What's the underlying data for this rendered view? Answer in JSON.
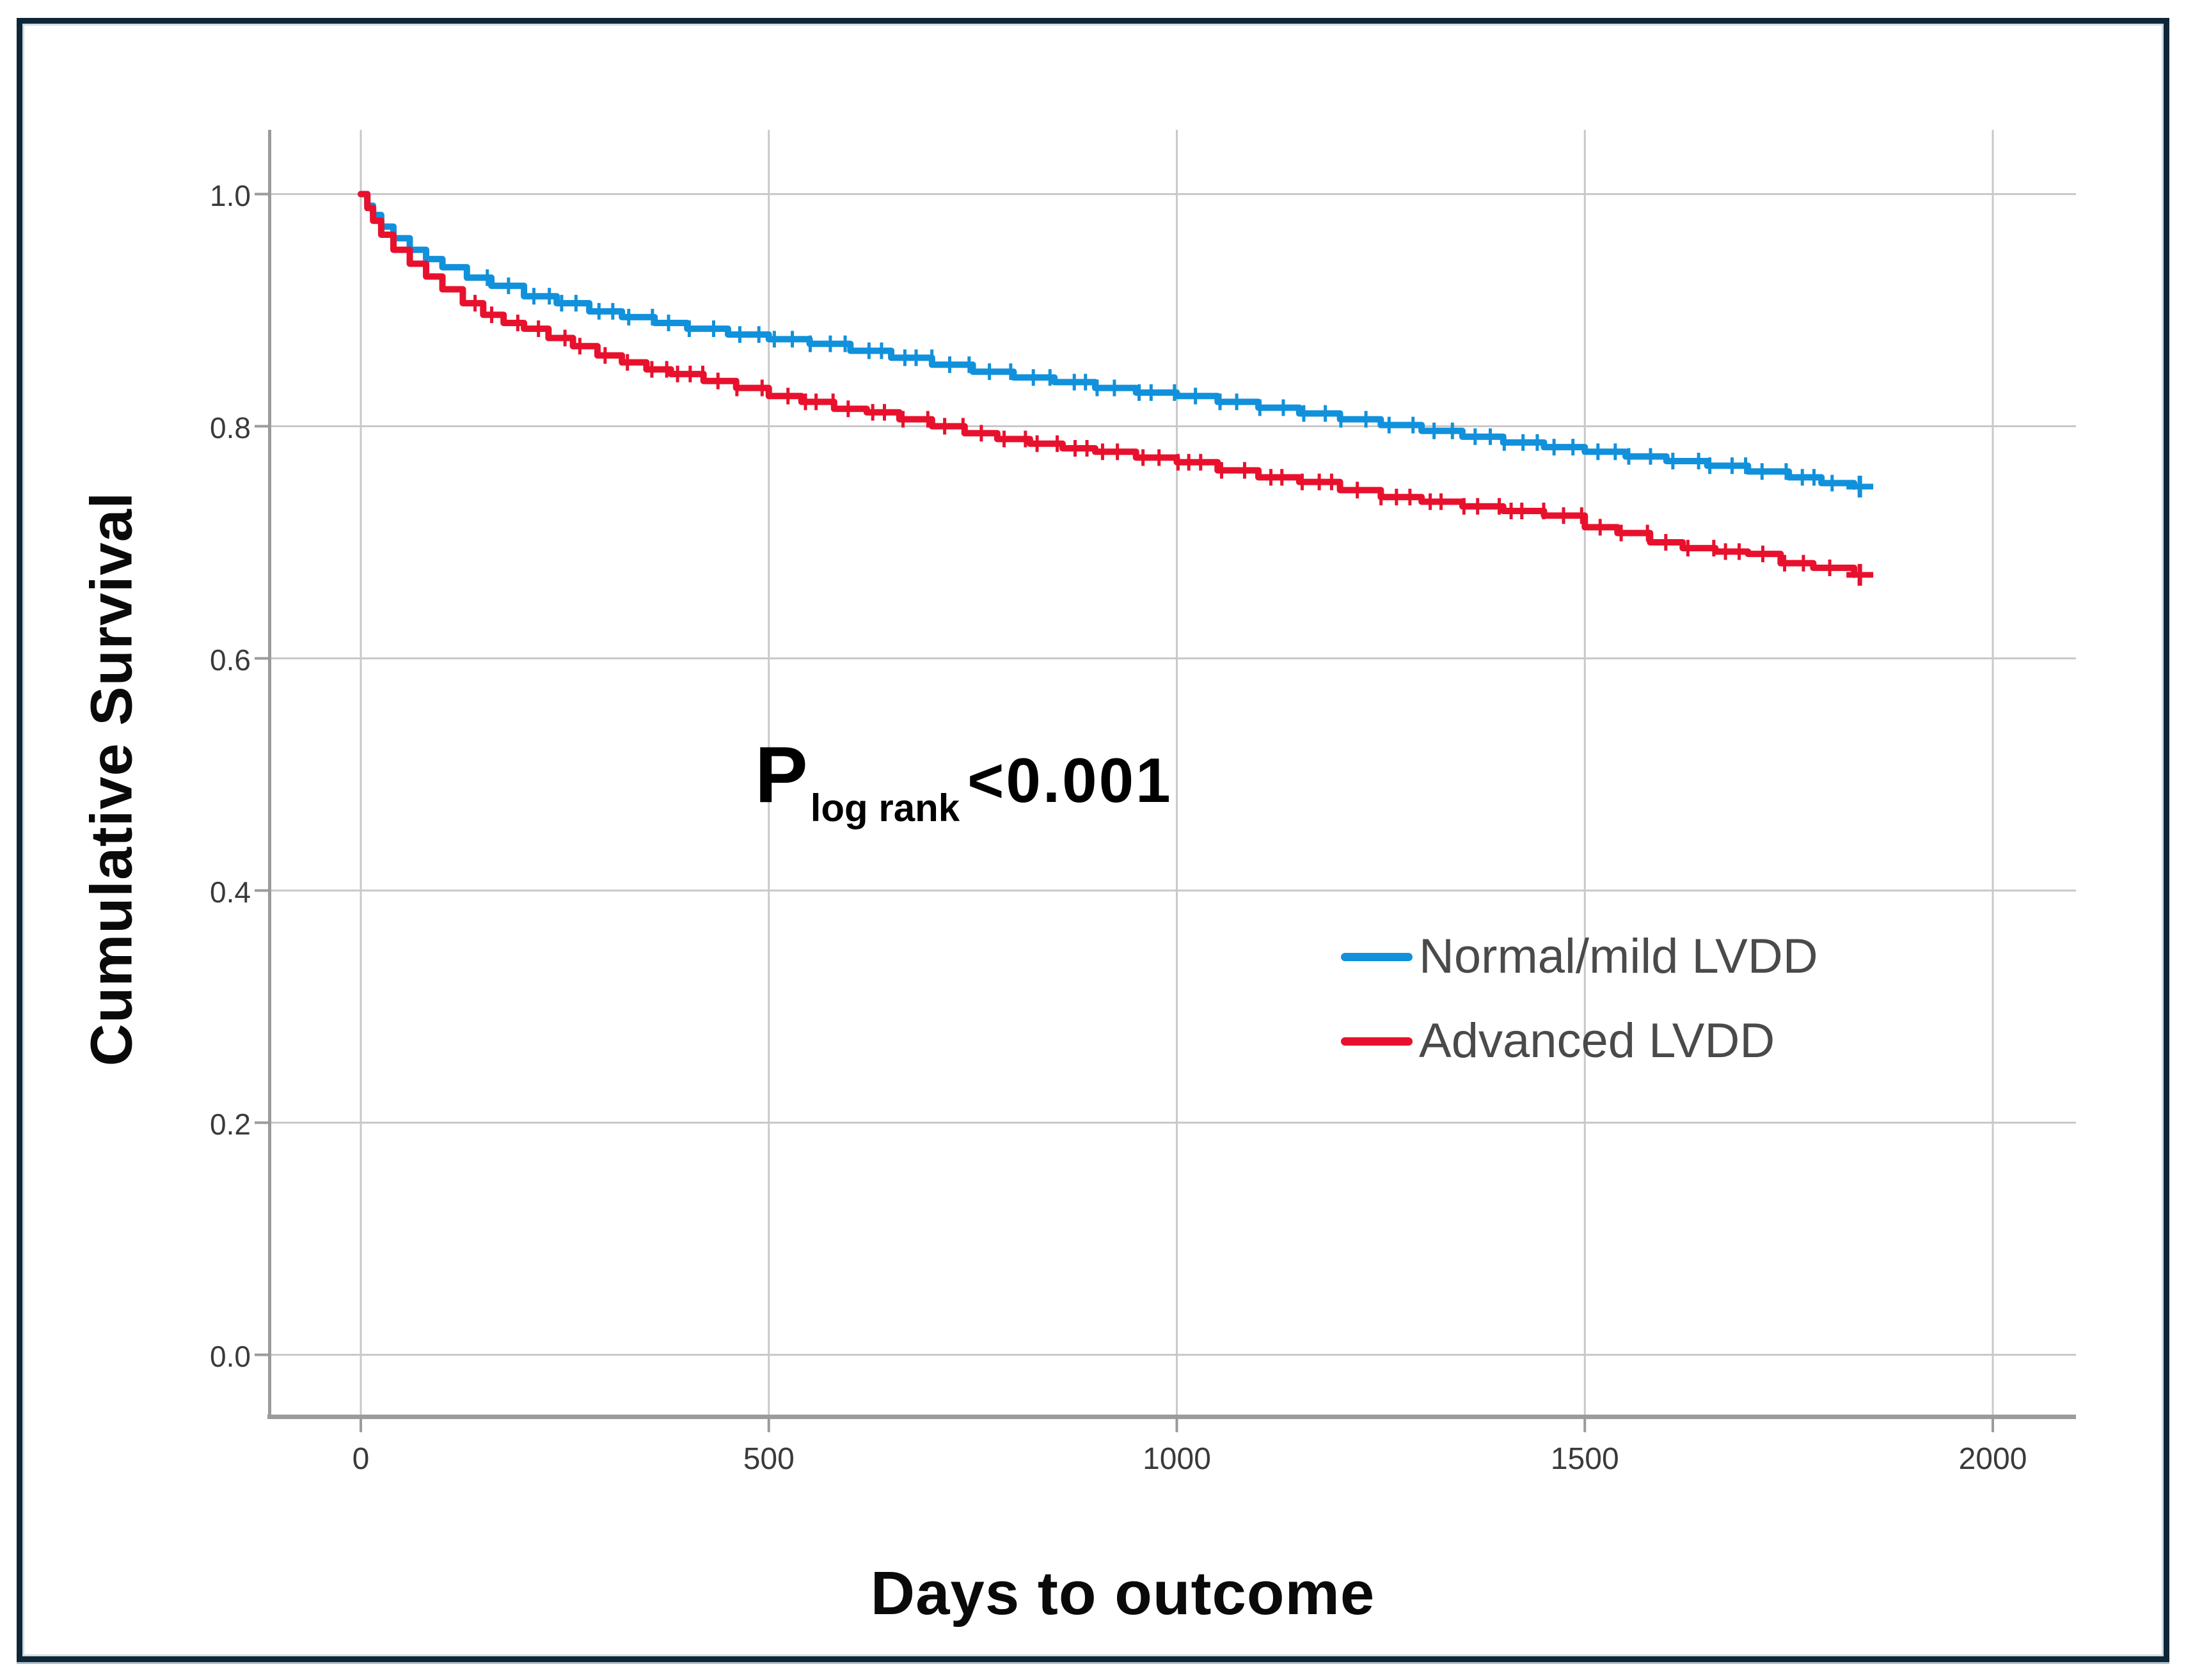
{
  "figure": {
    "background_color": "#ffffff",
    "border_color": "#0e2637",
    "gridline_color": "#c9c9c9",
    "axis_line_color": "#9b9b9b",
    "tick_label_color": "#3a3a3a"
  },
  "chart_data": {
    "type": "line",
    "subtype": "kaplan-meier-step-curves",
    "title": "",
    "xlabel": "Days to outcome",
    "ylabel": "Cumulative Survival",
    "xlim": [
      0,
      2000
    ],
    "ylim": [
      0.0,
      1.0
    ],
    "grid": true,
    "legend_position": "inside-right",
    "has_censor_marks": true,
    "end_marker": "plus",
    "annotation": {
      "p_label": "P",
      "p_subscript": "log rank",
      "p_value": "<0.001"
    },
    "x_ticks": [
      {
        "label": "0",
        "value": 0
      },
      {
        "label": "500",
        "value": 500
      },
      {
        "label": "1000",
        "value": 1000
      },
      {
        "label": "1500",
        "value": 1500
      },
      {
        "label": "2000",
        "value": 2000
      }
    ],
    "y_ticks": [
      {
        "label": "1.0",
        "value": 1.0
      },
      {
        "label": "0.8",
        "value": 0.8
      },
      {
        "label": "0.6",
        "value": 0.6
      },
      {
        "label": "0.4",
        "value": 0.4
      },
      {
        "label": "0.2",
        "value": 0.2
      },
      {
        "label": "0.0",
        "value": 0.0
      }
    ],
    "legend": [
      {
        "label": "Normal/mild LVDD",
        "color": "#1191db"
      },
      {
        "label": "Advanced LVDD",
        "color": "#e8112d"
      }
    ],
    "series": [
      {
        "name": "Normal/mild LVDD",
        "color": "#1191db",
        "censor_start_day": 155,
        "seed": 11,
        "points": [
          [
            0,
            1.0
          ],
          [
            8,
            0.99
          ],
          [
            15,
            0.982
          ],
          [
            25,
            0.972
          ],
          [
            40,
            0.962
          ],
          [
            60,
            0.952
          ],
          [
            80,
            0.944
          ],
          [
            100,
            0.937
          ],
          [
            130,
            0.928
          ],
          [
            160,
            0.921
          ],
          [
            200,
            0.912
          ],
          [
            240,
            0.906
          ],
          [
            280,
            0.899
          ],
          [
            320,
            0.894
          ],
          [
            360,
            0.889
          ],
          [
            400,
            0.884
          ],
          [
            450,
            0.879
          ],
          [
            500,
            0.875
          ],
          [
            550,
            0.871
          ],
          [
            600,
            0.865
          ],
          [
            650,
            0.859
          ],
          [
            700,
            0.853
          ],
          [
            750,
            0.847
          ],
          [
            800,
            0.842
          ],
          [
            850,
            0.838
          ],
          [
            900,
            0.833
          ],
          [
            950,
            0.829
          ],
          [
            1000,
            0.826
          ],
          [
            1050,
            0.821
          ],
          [
            1100,
            0.816
          ],
          [
            1150,
            0.811
          ],
          [
            1200,
            0.806
          ],
          [
            1250,
            0.801
          ],
          [
            1300,
            0.796
          ],
          [
            1350,
            0.791
          ],
          [
            1400,
            0.786
          ],
          [
            1450,
            0.782
          ],
          [
            1500,
            0.778
          ],
          [
            1550,
            0.774
          ],
          [
            1600,
            0.77
          ],
          [
            1650,
            0.766
          ],
          [
            1700,
            0.761
          ],
          [
            1750,
            0.756
          ],
          [
            1790,
            0.751
          ],
          [
            1830,
            0.748
          ]
        ]
      },
      {
        "name": "Advanced LVDD",
        "color": "#e8112d",
        "censor_start_day": 140,
        "seed": 29,
        "points": [
          [
            0,
            1.0
          ],
          [
            8,
            0.988
          ],
          [
            15,
            0.977
          ],
          [
            25,
            0.965
          ],
          [
            40,
            0.952
          ],
          [
            60,
            0.94
          ],
          [
            80,
            0.929
          ],
          [
            100,
            0.918
          ],
          [
            125,
            0.906
          ],
          [
            150,
            0.896
          ],
          [
            175,
            0.889
          ],
          [
            200,
            0.884
          ],
          [
            230,
            0.876
          ],
          [
            260,
            0.869
          ],
          [
            290,
            0.861
          ],
          [
            320,
            0.855
          ],
          [
            350,
            0.849
          ],
          [
            380,
            0.845
          ],
          [
            420,
            0.839
          ],
          [
            460,
            0.833
          ],
          [
            500,
            0.826
          ],
          [
            540,
            0.821
          ],
          [
            580,
            0.815
          ],
          [
            620,
            0.812
          ],
          [
            660,
            0.806
          ],
          [
            700,
            0.8
          ],
          [
            740,
            0.794
          ],
          [
            780,
            0.789
          ],
          [
            820,
            0.785
          ],
          [
            860,
            0.781
          ],
          [
            900,
            0.778
          ],
          [
            950,
            0.773
          ],
          [
            1000,
            0.769
          ],
          [
            1050,
            0.762
          ],
          [
            1100,
            0.756
          ],
          [
            1150,
            0.752
          ],
          [
            1200,
            0.745
          ],
          [
            1250,
            0.739
          ],
          [
            1300,
            0.735
          ],
          [
            1350,
            0.731
          ],
          [
            1400,
            0.727
          ],
          [
            1450,
            0.723
          ],
          [
            1500,
            0.713
          ],
          [
            1540,
            0.708
          ],
          [
            1580,
            0.7
          ],
          [
            1620,
            0.695
          ],
          [
            1660,
            0.692
          ],
          [
            1700,
            0.69
          ],
          [
            1740,
            0.682
          ],
          [
            1780,
            0.678
          ],
          [
            1830,
            0.672
          ]
        ]
      }
    ]
  }
}
